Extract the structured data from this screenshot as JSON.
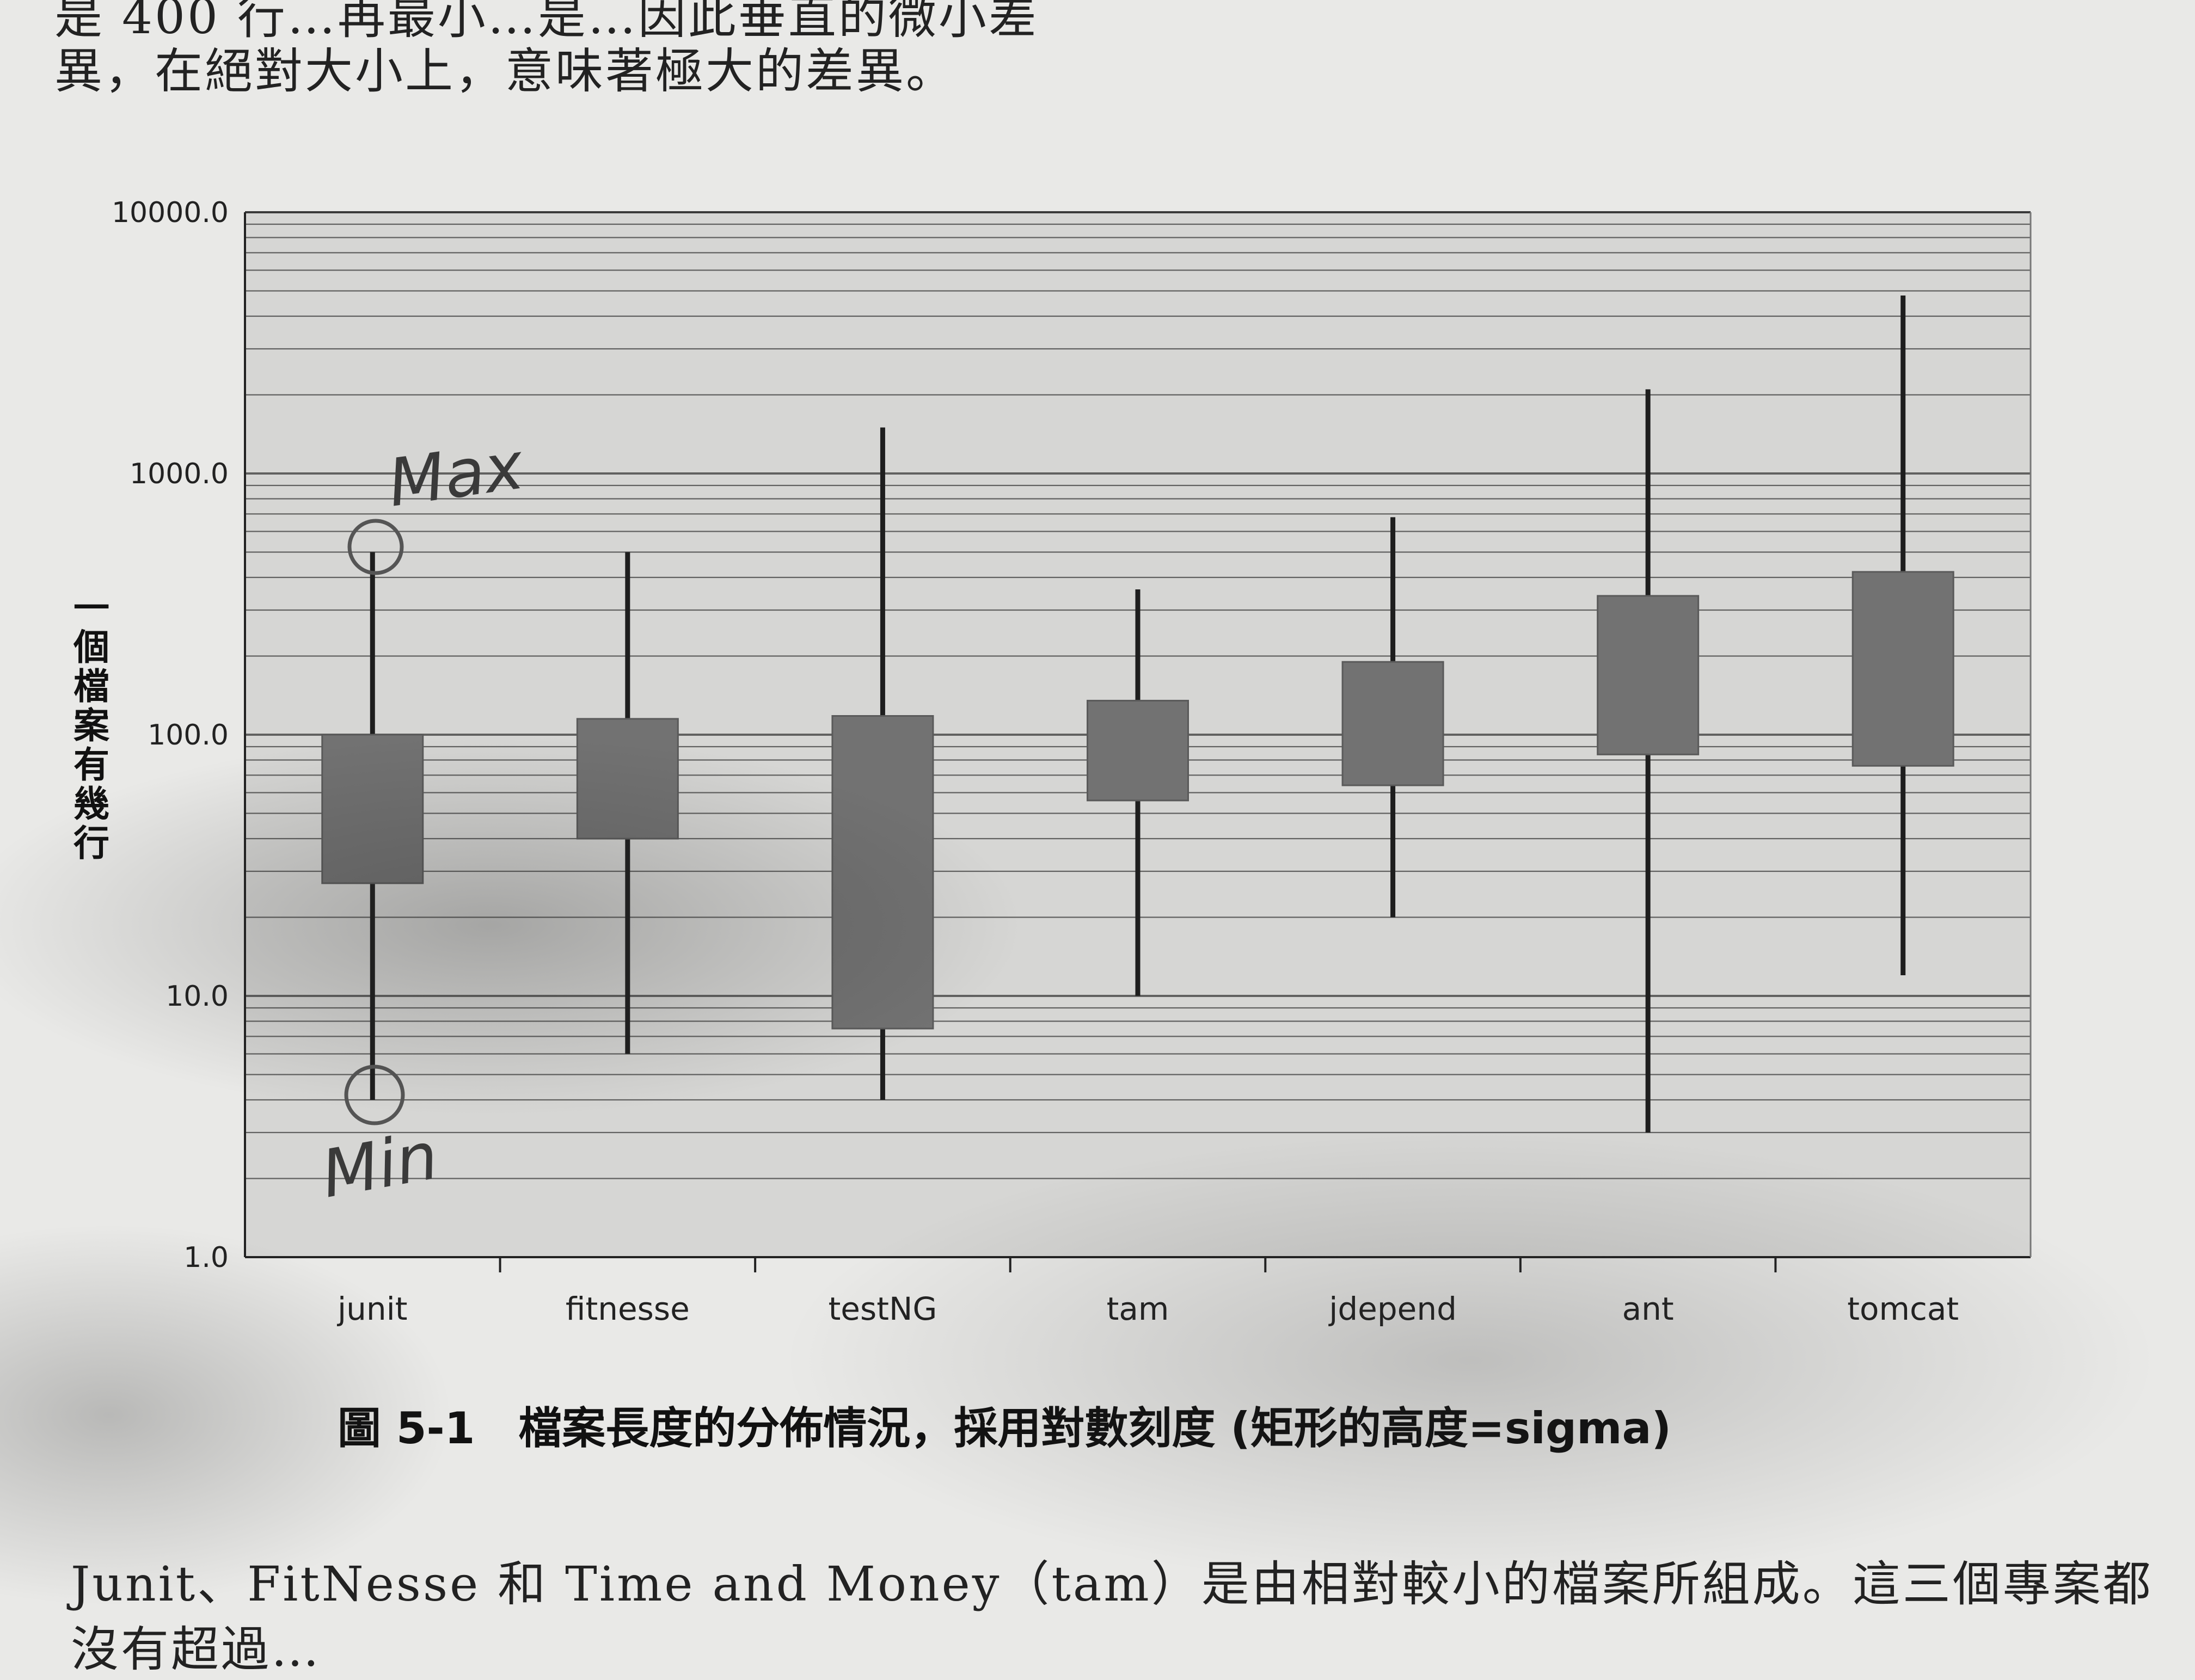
{
  "text": {
    "top_partial": "是 400 行…再最小…是…因此垂直的微小差",
    "top_line": "異，在絕對大小上，意味著極大的差異。",
    "caption": "圖 5-1　檔案長度的分佈情況，採用對數刻度 (矩形的高度=sigma)",
    "bottom_line": "Junit、FitNesse 和 Time and Money（tam）是由相對較小的檔案所組成。這三個專案都",
    "bottom_partial": "沒有超過…"
  },
  "annotations": {
    "max_note": "Max",
    "min_note": "Min"
  },
  "chart_data": {
    "type": "box",
    "scale": "log",
    "ylabel": "一個檔案有幾行",
    "ylim": [
      1,
      10000
    ],
    "yticks": [
      "1.0",
      "10.0",
      "100.0",
      "1000.0",
      "10000.0"
    ],
    "grid": true,
    "categories": [
      "junit",
      "fitnesse",
      "testNG",
      "tam",
      "jdepend",
      "ant",
      "tomcat"
    ],
    "boxes": [
      {
        "min": 4,
        "q_low": 27,
        "q_high": 100,
        "max": 500
      },
      {
        "min": 6,
        "q_low": 40,
        "q_high": 115,
        "max": 500
      },
      {
        "min": 4,
        "q_low": 7.5,
        "q_high": 118,
        "max": 1500
      },
      {
        "min": 10,
        "q_low": 56,
        "q_high": 135,
        "max": 360
      },
      {
        "min": 20,
        "q_low": 64,
        "q_high": 190,
        "max": 680
      },
      {
        "min": 3,
        "q_low": 84,
        "q_high": 340,
        "max": 2100
      },
      {
        "min": 12,
        "q_low": 76,
        "q_high": 420,
        "max": 4800
      }
    ],
    "colors": {
      "plot_bg": "#d6d6d4",
      "box_fill": "#727272",
      "whisker": "#1e1e1e",
      "grid": "#3a3a3a",
      "annotation": "#555555"
    }
  }
}
